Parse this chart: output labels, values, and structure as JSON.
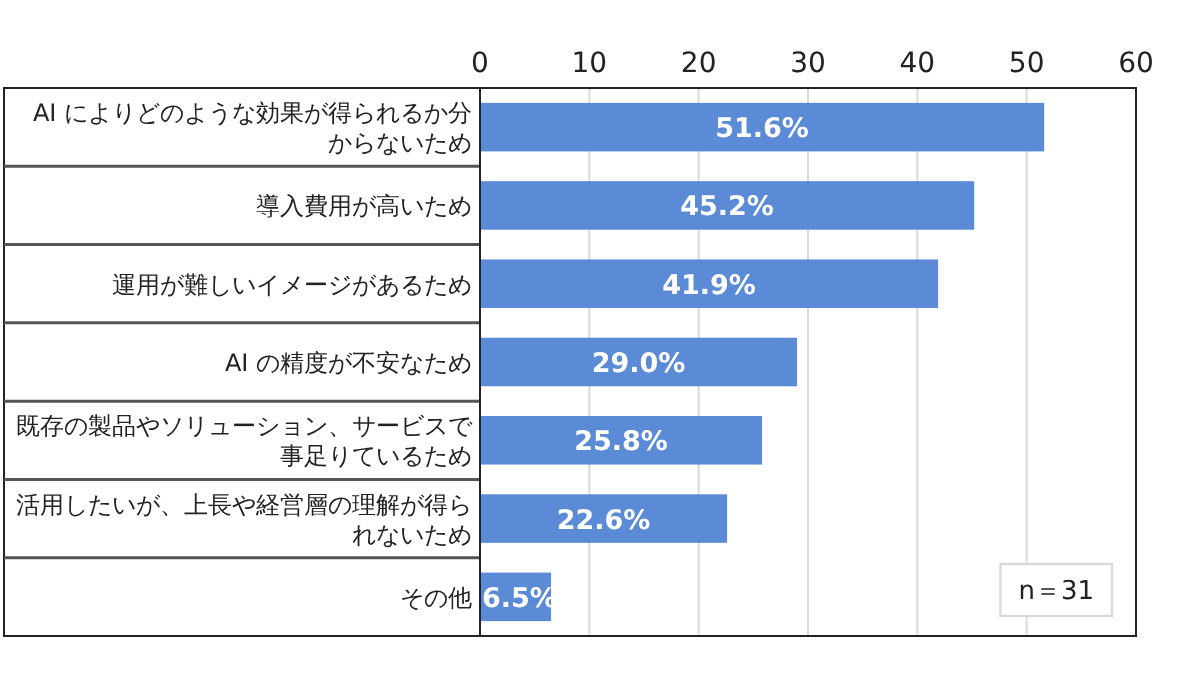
{
  "chart_data": {
    "type": "bar",
    "orientation": "horizontal",
    "categories": [
      "AI によりどのような効果が得られるか分からないため",
      "導入費用が高いため",
      "運用が難しいイメージがあるため",
      "AI の精度が不安なため",
      "既存の製品やソリューション、サービスで事足りているため",
      "活用したいが、上長や経営層の理解が得られないため",
      "その他"
    ],
    "values": [
      51.6,
      45.2,
      41.9,
      29.0,
      25.8,
      22.6,
      6.5
    ],
    "value_labels": [
      "51.6%",
      "45.2%",
      "41.9%",
      "29.0%",
      "25.8%",
      "22.6%",
      "6.5%"
    ],
    "color": "#5b8bd6",
    "xlim": [
      0,
      60
    ],
    "xticks": [
      0,
      10,
      20,
      30,
      40,
      50,
      60
    ],
    "grid": "x",
    "annotations": [
      "n＝31"
    ]
  }
}
